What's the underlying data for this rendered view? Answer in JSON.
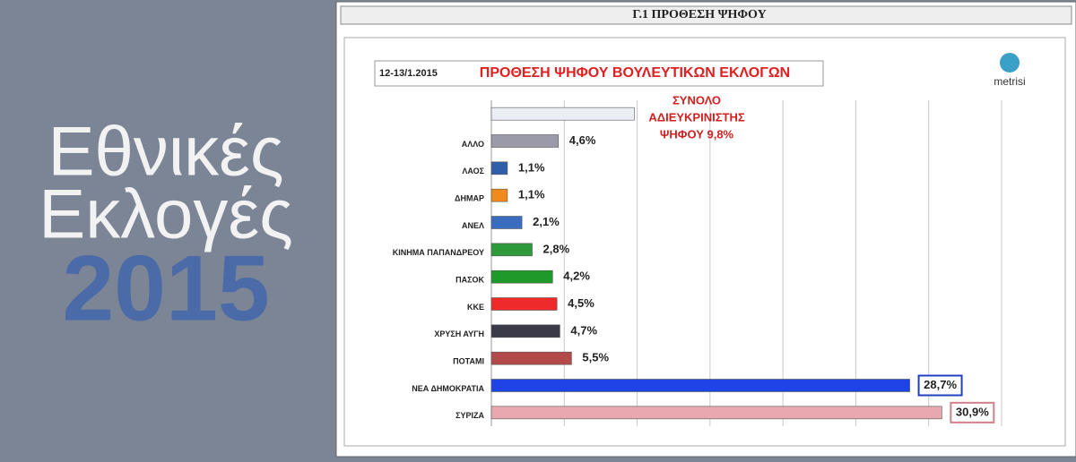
{
  "banner": {
    "line1": "Εθνικές",
    "line2": "Εκλογές",
    "year": "2015"
  },
  "panel_title": "Γ.1 ΠΡΟΘΕΣΗ ΨΗΦΟΥ",
  "chart_data": {
    "type": "hbar",
    "date": "12-13/1.2015",
    "title": "ΠΡΟΘΕΣΗ ΨΗΦΟΥ ΒΟΥΛΕΥΤΙΚΩΝ ΕΚΛΟΓΩΝ",
    "logo": "metrisi",
    "annotation": [
      "ΣΥΝΟΛΟ",
      "ΑΔΙΕΥΚΡΙΝΙΣΤΗΣ",
      "ΨΗΦΟΥ 9,8%"
    ],
    "categories": [
      null,
      "ΑΛΛΟ",
      "ΛΑΟΣ",
      "ΔΗΜΑΡ",
      "ΑΝΕΛ",
      "ΚΙΝΗΜΑ ΠΑΠΑΝΔΡΕΟΥ",
      "ΠΑΣΟΚ",
      "ΚΚΕ",
      "ΧΡΥΣΗ ΑΥΓΗ",
      "ΠΟΤΑΜΙ",
      "ΝΕΑ ΔΗΜΟΚΡΑΤΙΑ",
      "ΣΥΡΙΖΑ"
    ],
    "values": [
      9.8,
      4.6,
      1.1,
      1.1,
      2.1,
      2.8,
      4.2,
      4.5,
      4.7,
      5.5,
      28.7,
      30.9
    ],
    "value_labels": [
      null,
      "4,6%",
      "1,1%",
      "1,1%",
      "2,1%",
      "2,8%",
      "4,2%",
      "4,5%",
      "4,7%",
      "5,5%",
      "28,7%",
      "30,9%"
    ],
    "colors": [
      "#eceef6",
      "#9a9aa8",
      "#2f5fa8",
      "#ef8a1c",
      "#3a6cc0",
      "#2e9a3a",
      "#1f9a2a",
      "#ee2a2a",
      "#3a3a48",
      "#b34a4a",
      "#1e44e8",
      "#e8a8b0"
    ],
    "boxed_labels": {
      "10": "#2040c0",
      "11": "#d08088"
    },
    "xlim": [
      0,
      35
    ],
    "xticks": [
      0,
      5,
      10,
      15,
      20,
      25,
      30,
      35
    ],
    "grid": true
  }
}
